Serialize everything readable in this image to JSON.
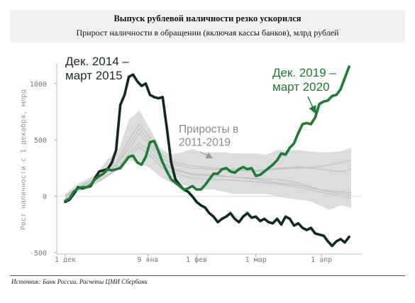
{
  "header": {
    "title": "Выпуск рублевой наличности резко ускорился",
    "subtitle": "Прирост наличности в обращении (включая кассы банков), млрд рублей"
  },
  "source": "Источник: Банк России. Расчеты ЦМИ Сбербанк",
  "chart_data": {
    "type": "line",
    "ylabel": "Рост наличности с 1 декабря, млрд",
    "ylim": [
      -500,
      1150
    ],
    "yticks": [
      -500,
      0,
      500,
      1000
    ],
    "x_axis_unit": "days since 1 Dec",
    "xlim": [
      0,
      140
    ],
    "xticks": [
      {
        "x": 0,
        "label": "1 дек"
      },
      {
        "x": 39,
        "label": "9 янв"
      },
      {
        "x": 62,
        "label": "1 фев"
      },
      {
        "x": 90,
        "label": "1 мар"
      },
      {
        "x": 121,
        "label": "1 апр"
      }
    ],
    "annotations": [
      {
        "text": "Дек. 2014 –\nмарт 2015",
        "color": "#1b2b23"
      },
      {
        "text": "Приросты в\n2011-2019",
        "color": "#8a8a8a"
      },
      {
        "text": "Дек. 2019 –\nмарт 2020",
        "color": "#1f7a32"
      }
    ],
    "colors": {
      "band": "#dcdcdc",
      "band_lines": "#bdbdbd",
      "s2014": "#0f2a1f",
      "s2019": "#1f7a32"
    },
    "band": {
      "name": "2011-2019",
      "x": [
        0,
        5,
        10,
        15,
        20,
        25,
        30,
        35,
        40,
        45,
        50,
        55,
        60,
        65,
        70,
        75,
        80,
        85,
        90,
        95,
        100,
        105,
        110,
        115,
        120,
        125,
        130,
        135
      ],
      "lower": [
        -30,
        40,
        90,
        130,
        190,
        260,
        320,
        300,
        250,
        170,
        120,
        100,
        80,
        60,
        60,
        40,
        20,
        20,
        20,
        20,
        0,
        -20,
        -30,
        -40,
        -80,
        -120,
        -80,
        -100
      ],
      "upper": [
        20,
        100,
        150,
        200,
        330,
        400,
        680,
        760,
        600,
        420,
        370,
        390,
        420,
        390,
        390,
        390,
        380,
        380,
        380,
        370,
        410,
        410,
        410,
        400,
        390,
        390,
        400,
        430
      ]
    },
    "band_lines": [
      {
        "x": [
          0,
          8,
          16,
          24,
          30,
          35,
          40,
          46,
          52,
          60,
          70,
          80,
          90,
          100,
          110,
          120,
          130,
          135
        ],
        "y": [
          -10,
          80,
          160,
          280,
          420,
          560,
          450,
          300,
          240,
          200,
          190,
          170,
          160,
          150,
          120,
          60,
          20,
          10
        ]
      },
      {
        "x": [
          0,
          8,
          16,
          24,
          30,
          35,
          40,
          46,
          52,
          60,
          70,
          80,
          90,
          100,
          110,
          120,
          130,
          135
        ],
        "y": [
          0,
          90,
          180,
          300,
          500,
          640,
          520,
          360,
          300,
          270,
          250,
          240,
          230,
          250,
          260,
          240,
          220,
          240
        ]
      },
      {
        "x": [
          0,
          8,
          16,
          24,
          30,
          35,
          40,
          46,
          52,
          60,
          70,
          80,
          90,
          100,
          110,
          120,
          130,
          135
        ],
        "y": [
          10,
          70,
          140,
          240,
          380,
          470,
          400,
          280,
          230,
          190,
          180,
          170,
          150,
          120,
          100,
          60,
          40,
          30
        ]
      },
      {
        "x": [
          0,
          8,
          16,
          24,
          30,
          35,
          40,
          46,
          52,
          60,
          70,
          80,
          90,
          100,
          110,
          120,
          130,
          135
        ],
        "y": [
          -20,
          60,
          130,
          230,
          350,
          440,
          360,
          250,
          200,
          160,
          150,
          140,
          130,
          110,
          80,
          40,
          0,
          -20
        ]
      },
      {
        "x": [
          0,
          8,
          16,
          24,
          30,
          35,
          40,
          46,
          52,
          60,
          70,
          80,
          90,
          100,
          110,
          120,
          130,
          135
        ],
        "y": [
          5,
          100,
          170,
          270,
          460,
          600,
          480,
          330,
          280,
          250,
          240,
          230,
          220,
          240,
          250,
          260,
          300,
          320
        ]
      }
    ],
    "series": [
      {
        "name": "Дек. 2014 – март 2015",
        "x": [
          0,
          2,
          4,
          6,
          8,
          10,
          12,
          14,
          16,
          18,
          20,
          22,
          24,
          26,
          28,
          30,
          32,
          34,
          36,
          38,
          40,
          42,
          44,
          46,
          48,
          50,
          52,
          54,
          56,
          58,
          60,
          62,
          64,
          66,
          68,
          70,
          72,
          74,
          76,
          78,
          80,
          82,
          84,
          86,
          88,
          90,
          92,
          94,
          96,
          98,
          100,
          102,
          104,
          106,
          108,
          110,
          112,
          114,
          116,
          118,
          120,
          122,
          124,
          126,
          128,
          130,
          132,
          134
        ],
        "y": [
          -50,
          -30,
          20,
          80,
          70,
          80,
          90,
          160,
          220,
          230,
          240,
          300,
          410,
          810,
          900,
          1060,
          1080,
          1020,
          980,
          1000,
          900,
          880,
          870,
          880,
          600,
          300,
          150,
          100,
          60,
          40,
          0,
          -50,
          -80,
          -100,
          -150,
          -180,
          -230,
          -200,
          -180,
          -150,
          -200,
          -230,
          -180,
          -150,
          -190,
          -180,
          -220,
          -200,
          -230,
          -240,
          -200,
          -250,
          -180,
          -200,
          -260,
          -240,
          -280,
          -300,
          -280,
          -330,
          -340,
          -350,
          -400,
          -440,
          -400,
          -380,
          -410,
          -360
        ]
      },
      {
        "name": "Дек. 2019 – март 2020",
        "x": [
          0,
          2,
          4,
          6,
          8,
          10,
          12,
          14,
          16,
          18,
          20,
          22,
          24,
          26,
          28,
          30,
          32,
          34,
          36,
          38,
          40,
          42,
          44,
          46,
          48,
          50,
          52,
          54,
          56,
          58,
          60,
          62,
          64,
          66,
          68,
          70,
          72,
          74,
          76,
          78,
          80,
          82,
          84,
          86,
          88,
          90,
          92,
          94,
          96,
          98,
          100,
          102,
          104,
          106,
          108,
          110,
          112,
          114,
          116,
          118,
          120,
          122,
          124,
          126,
          128,
          130,
          132,
          134
        ],
        "y": [
          -40,
          -20,
          40,
          70,
          80,
          80,
          100,
          150,
          180,
          200,
          240,
          230,
          240,
          250,
          300,
          350,
          360,
          300,
          280,
          350,
          480,
          490,
          400,
          300,
          220,
          150,
          120,
          90,
          60,
          70,
          90,
          60,
          60,
          100,
          150,
          200,
          200,
          240,
          250,
          220,
          210,
          240,
          260,
          240,
          250,
          180,
          190,
          220,
          250,
          280,
          320,
          380,
          370,
          430,
          470,
          560,
          640,
          650,
          640,
          700,
          820,
          840,
          850,
          890,
          900,
          950,
          1050,
          1150
        ]
      }
    ]
  }
}
